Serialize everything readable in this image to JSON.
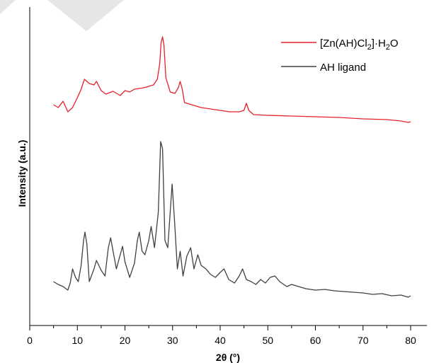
{
  "chart_data": {
    "type": "line",
    "xlabel": "2θ (°)",
    "ylabel": "Intensity (a.u.)",
    "xlim": [
      0,
      82
    ],
    "xticks": [
      0,
      10,
      20,
      30,
      40,
      50,
      60,
      70,
      80
    ],
    "yticks_shown": false,
    "grid": false,
    "legend_position": "top-right",
    "series": [
      {
        "name": "[Zn(AH)Cl2]·H2O",
        "legend_parts": {
          "base": "[Zn(AH)Cl",
          "sub1": "2",
          "mid": "]·H",
          "sub2": "2",
          "end": "O"
        },
        "color": "#e8202a",
        "points": [
          [
            5,
            148
          ],
          [
            6,
            152
          ],
          [
            7,
            143
          ],
          [
            8,
            158
          ],
          [
            9,
            152
          ],
          [
            10,
            138
          ],
          [
            10.8,
            126
          ],
          [
            11.5,
            112
          ],
          [
            12.5,
            118
          ],
          [
            13.5,
            120
          ],
          [
            14,
            115
          ],
          [
            15,
            128
          ],
          [
            16,
            133
          ],
          [
            17.5,
            129
          ],
          [
            19,
            135
          ],
          [
            20,
            128
          ],
          [
            21,
            130
          ],
          [
            22,
            126
          ],
          [
            23,
            125
          ],
          [
            24,
            124
          ],
          [
            25,
            122
          ],
          [
            26,
            120
          ],
          [
            26.8,
            112
          ],
          [
            27.3,
            90
          ],
          [
            27.6,
            60
          ],
          [
            27.9,
            52
          ],
          [
            28.2,
            64
          ],
          [
            28.6,
            110
          ],
          [
            29.5,
            130
          ],
          [
            30.5,
            132
          ],
          [
            31.2,
            124
          ],
          [
            31.6,
            115
          ],
          [
            32,
            125
          ],
          [
            32.5,
            145
          ],
          [
            34,
            148
          ],
          [
            36,
            152
          ],
          [
            38,
            154
          ],
          [
            40,
            156
          ],
          [
            42,
            158
          ],
          [
            44,
            158
          ],
          [
            45,
            156
          ],
          [
            45.5,
            146
          ],
          [
            46,
            156
          ],
          [
            47,
            162
          ],
          [
            50,
            163
          ],
          [
            55,
            164
          ],
          [
            60,
            165
          ],
          [
            65,
            166
          ],
          [
            70,
            168
          ],
          [
            75,
            169
          ],
          [
            78,
            171
          ],
          [
            79.5,
            173
          ],
          [
            80,
            172
          ]
        ]
      },
      {
        "name": "AH ligand",
        "color": "#404040",
        "points": [
          [
            5,
            398
          ],
          [
            6,
            402
          ],
          [
            7,
            405
          ],
          [
            8,
            410
          ],
          [
            8.5,
            400
          ],
          [
            9,
            380
          ],
          [
            9.6,
            392
          ],
          [
            10.2,
            398
          ],
          [
            10.8,
            375
          ],
          [
            11.3,
            340
          ],
          [
            11.6,
            328
          ],
          [
            12,
            345
          ],
          [
            12.5,
            398
          ],
          [
            13.5,
            380
          ],
          [
            14,
            368
          ],
          [
            15,
            382
          ],
          [
            15.8,
            390
          ],
          [
            16.5,
            350
          ],
          [
            17,
            336
          ],
          [
            17.5,
            355
          ],
          [
            18.2,
            380
          ],
          [
            19,
            360
          ],
          [
            19.5,
            348
          ],
          [
            20,
            370
          ],
          [
            21,
            392
          ],
          [
            22,
            372
          ],
          [
            22.6,
            340
          ],
          [
            23,
            328
          ],
          [
            23.6,
            355
          ],
          [
            24.2,
            360
          ],
          [
            25,
            340
          ],
          [
            25.5,
            320
          ],
          [
            26.2,
            350
          ],
          [
            27,
            300
          ],
          [
            27.5,
            200
          ],
          [
            27.9,
            210
          ],
          [
            28.4,
            340
          ],
          [
            29,
            350
          ],
          [
            29.5,
            300
          ],
          [
            29.9,
            260
          ],
          [
            30.4,
            310
          ],
          [
            31,
            380
          ],
          [
            31.6,
            355
          ],
          [
            32.2,
            390
          ],
          [
            33,
            362
          ],
          [
            33.8,
            350
          ],
          [
            34.5,
            380
          ],
          [
            35.3,
            360
          ],
          [
            36,
            375
          ],
          [
            37,
            380
          ],
          [
            38,
            388
          ],
          [
            39,
            392
          ],
          [
            40,
            385
          ],
          [
            40.8,
            380
          ],
          [
            41.8,
            395
          ],
          [
            43,
            400
          ],
          [
            44,
            390
          ],
          [
            44.7,
            380
          ],
          [
            45.5,
            395
          ],
          [
            46.5,
            398
          ],
          [
            47.5,
            402
          ],
          [
            48.5,
            395
          ],
          [
            49.5,
            400
          ],
          [
            50.5,
            392
          ],
          [
            51.5,
            390
          ],
          [
            52.5,
            398
          ],
          [
            54,
            405
          ],
          [
            55,
            402
          ],
          [
            56.5,
            405
          ],
          [
            58,
            408
          ],
          [
            60,
            410
          ],
          [
            62,
            409
          ],
          [
            64,
            411
          ],
          [
            66,
            412
          ],
          [
            68,
            413
          ],
          [
            70,
            414
          ],
          [
            72,
            416
          ],
          [
            74,
            415
          ],
          [
            76,
            418
          ],
          [
            78,
            417
          ],
          [
            79.5,
            420
          ],
          [
            80,
            418
          ]
        ]
      }
    ]
  }
}
